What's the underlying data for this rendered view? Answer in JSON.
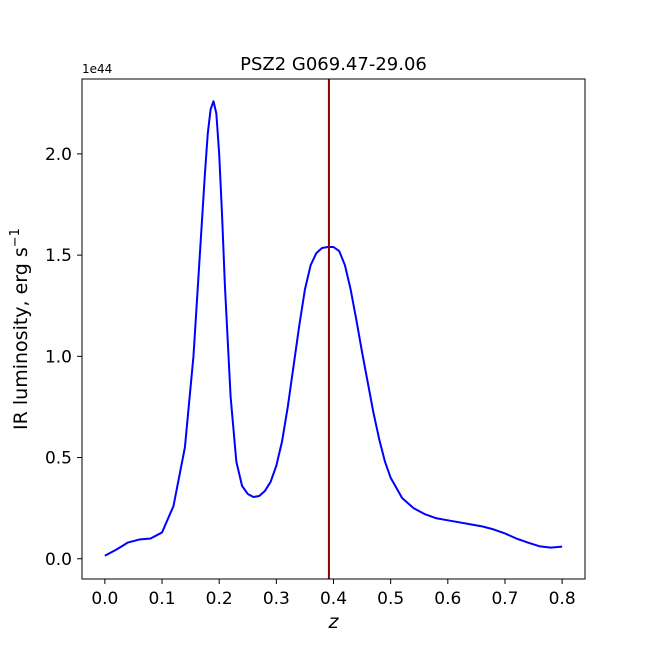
{
  "chart_data": {
    "type": "line",
    "title": "PSZ2 G069.47-29.06",
    "xlabel": "z",
    "ylabel_main": "IR luminosity, erg s",
    "ylabel_sup": "−1",
    "y_offset_text": "1e44",
    "xlim": [
      -0.04,
      0.84
    ],
    "ylim": [
      -0.1,
      2.37
    ],
    "y_scale_factor": 1e+44,
    "x_ticks": [
      0.0,
      0.1,
      0.2,
      0.3,
      0.4,
      0.5,
      0.6,
      0.7,
      0.8
    ],
    "x_tick_labels": [
      "0.0",
      "0.1",
      "0.2",
      "0.3",
      "0.4",
      "0.5",
      "0.6",
      "0.7",
      "0.8"
    ],
    "y_ticks": [
      0.0,
      0.5,
      1.0,
      1.5,
      2.0
    ],
    "y_tick_labels": [
      "0.0",
      "0.5",
      "1.0",
      "1.5",
      "2.0"
    ],
    "grid": false,
    "vline": {
      "x": 0.392,
      "color": "#8b0000"
    },
    "series": [
      {
        "color": "#0000ff",
        "x": [
          0.0,
          0.02,
          0.04,
          0.06,
          0.08,
          0.1,
          0.12,
          0.14,
          0.155,
          0.165,
          0.175,
          0.18,
          0.185,
          0.19,
          0.195,
          0.2,
          0.205,
          0.21,
          0.22,
          0.23,
          0.24,
          0.25,
          0.26,
          0.27,
          0.28,
          0.29,
          0.3,
          0.31,
          0.32,
          0.33,
          0.34,
          0.35,
          0.36,
          0.37,
          0.38,
          0.39,
          0.4,
          0.41,
          0.42,
          0.43,
          0.44,
          0.45,
          0.46,
          0.47,
          0.48,
          0.49,
          0.5,
          0.52,
          0.54,
          0.56,
          0.58,
          0.6,
          0.62,
          0.64,
          0.66,
          0.68,
          0.7,
          0.72,
          0.74,
          0.76,
          0.78,
          0.8
        ],
        "y": [
          0.015,
          0.045,
          0.08,
          0.095,
          0.1,
          0.13,
          0.26,
          0.55,
          1.0,
          1.45,
          1.9,
          2.1,
          2.22,
          2.26,
          2.2,
          2.0,
          1.7,
          1.35,
          0.8,
          0.48,
          0.36,
          0.32,
          0.305,
          0.31,
          0.335,
          0.38,
          0.46,
          0.58,
          0.75,
          0.95,
          1.15,
          1.33,
          1.45,
          1.51,
          1.535,
          1.54,
          1.54,
          1.52,
          1.45,
          1.33,
          1.18,
          1.02,
          0.87,
          0.72,
          0.59,
          0.48,
          0.4,
          0.3,
          0.25,
          0.22,
          0.2,
          0.19,
          0.18,
          0.17,
          0.16,
          0.145,
          0.125,
          0.1,
          0.08,
          0.062,
          0.055,
          0.06
        ]
      }
    ]
  }
}
